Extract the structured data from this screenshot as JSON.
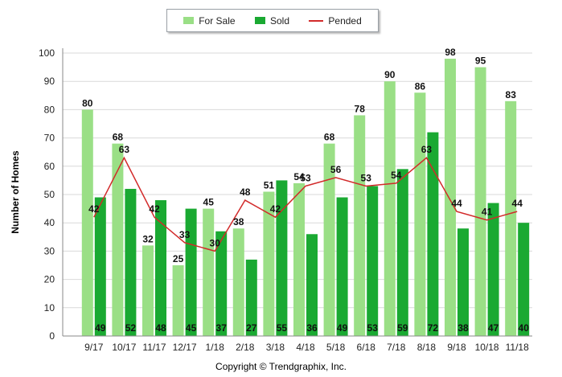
{
  "legend": {
    "for_sale": "For Sale",
    "sold": "Sold",
    "pended": "Pended"
  },
  "copyright": "Copyright © Trendgraphix, Inc.",
  "colors": {
    "for_sale": "#9adf86",
    "sold": "#1aa932",
    "pended": "#d22a2a"
  },
  "chart_data": {
    "type": "bar",
    "ylabel": "Number of Homes",
    "xlabel": "",
    "ylim": [
      0,
      100
    ],
    "yticks": [
      0,
      10,
      20,
      30,
      40,
      50,
      60,
      70,
      80,
      90,
      100
    ],
    "grid": true,
    "legend_position": "top-center",
    "categories": [
      "9/17",
      "10/17",
      "11/17",
      "12/17",
      "1/18",
      "2/18",
      "3/18",
      "4/18",
      "5/18",
      "6/18",
      "7/18",
      "8/18",
      "9/18",
      "10/18",
      "11/18"
    ],
    "series": [
      {
        "name": "For Sale",
        "type": "bar",
        "values": [
          80,
          68,
          32,
          25,
          45,
          38,
          51,
          54,
          68,
          78,
          90,
          86,
          98,
          95,
          83
        ]
      },
      {
        "name": "Sold",
        "type": "bar",
        "values": [
          49,
          52,
          48,
          45,
          37,
          27,
          55,
          36,
          49,
          53,
          59,
          72,
          38,
          47,
          40
        ]
      },
      {
        "name": "Pended",
        "type": "line",
        "values": [
          42,
          63,
          42,
          33,
          30,
          48,
          42,
          53,
          56,
          53,
          54,
          63,
          44,
          41,
          44
        ]
      }
    ]
  }
}
